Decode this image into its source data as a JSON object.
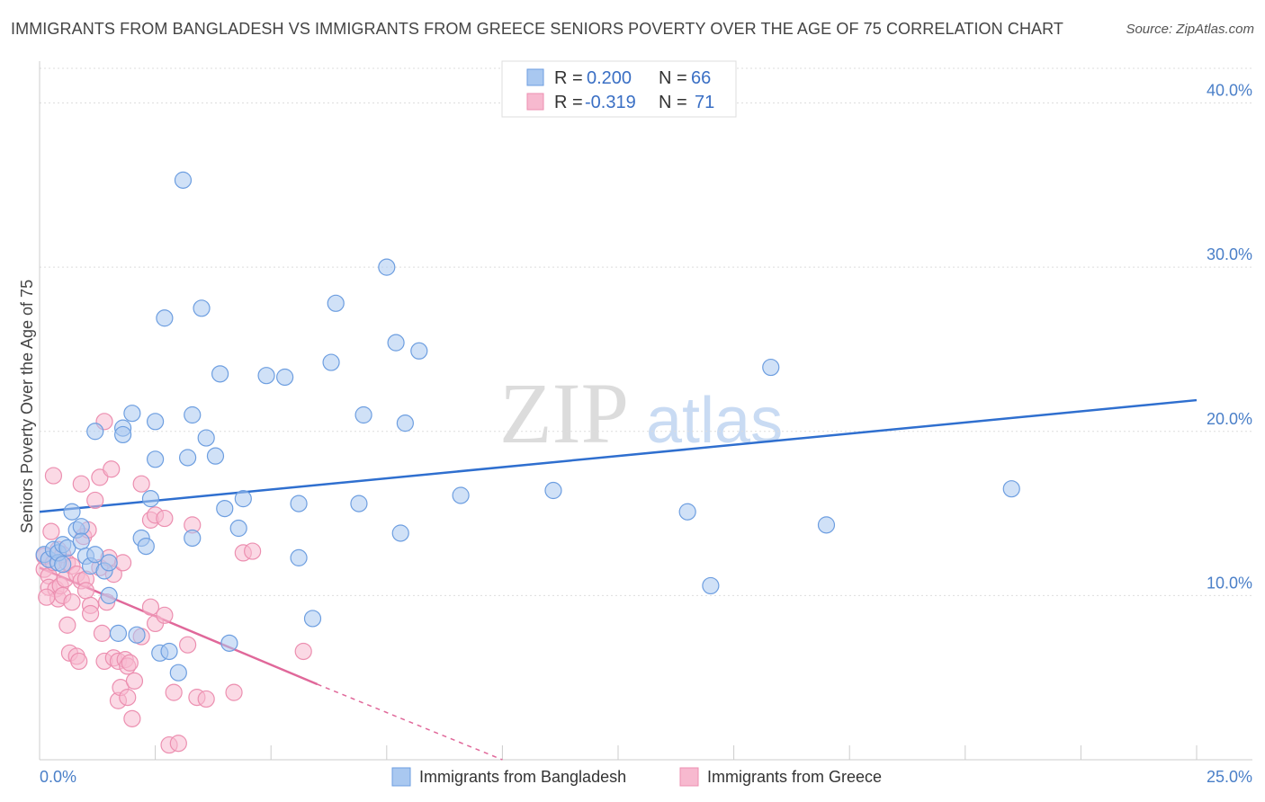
{
  "title": "IMMIGRANTS FROM BANGLADESH VS IMMIGRANTS FROM GREECE SENIORS POVERTY OVER THE AGE OF 75 CORRELATION CHART",
  "source": "Source: ZipAtlas.com",
  "watermark": {
    "zip": "ZIP",
    "atlas": "atlas"
  },
  "colors": {
    "bangladesh_fill": "#a9c8f0",
    "bangladesh_stroke": "#6d9ee0",
    "bangladesh_line": "#2f6fcf",
    "greece_fill": "#f7b9cf",
    "greece_stroke": "#ec8fb0",
    "greece_line": "#e0689a",
    "grid": "#dddddd",
    "axis_text": "#4a7fc8"
  },
  "legend": {
    "r_label": "R =",
    "n_label": "N =",
    "series": [
      {
        "r": "0.200",
        "n": "66"
      },
      {
        "r": "-0.319",
        "n": "71"
      }
    ]
  },
  "chart_data": {
    "type": "scatter",
    "title": "IMMIGRANTS FROM BANGLADESH VS IMMIGRANTS FROM GREECE SENIORS POVERTY OVER THE AGE OF 75 CORRELATION CHART",
    "xlabel": "",
    "ylabel": "Seniors Poverty Over the Age of 75",
    "xlim": [
      0,
      25
    ],
    "ylim": [
      0,
      42
    ],
    "x_tick_labels": [
      "0.0%",
      "25.0%"
    ],
    "y_ticks": [
      10,
      20,
      30,
      40
    ],
    "y_tick_labels": [
      "10.0%",
      "20.0%",
      "30.0%",
      "40.0%"
    ],
    "legend_position": "top-center",
    "grid": true,
    "series": [
      {
        "name": "Immigrants from Bangladesh",
        "r": 0.2,
        "n": 66,
        "trend": {
          "x": [
            0,
            25
          ],
          "y": [
            15.1,
            21.9
          ]
        },
        "points": [
          [
            0.1,
            12.5
          ],
          [
            0.2,
            12.2
          ],
          [
            0.3,
            12.8
          ],
          [
            0.4,
            12.0
          ],
          [
            0.4,
            12.6
          ],
          [
            0.5,
            13.1
          ],
          [
            0.5,
            11.9
          ],
          [
            0.6,
            12.9
          ],
          [
            0.7,
            15.1
          ],
          [
            0.8,
            14.0
          ],
          [
            0.9,
            14.2
          ],
          [
            0.9,
            13.3
          ],
          [
            1.0,
            12.4
          ],
          [
            1.1,
            11.8
          ],
          [
            1.2,
            12.5
          ],
          [
            1.4,
            11.5
          ],
          [
            1.5,
            12.0
          ],
          [
            1.5,
            10.0
          ],
          [
            1.7,
            7.7
          ],
          [
            1.2,
            20.0
          ],
          [
            1.8,
            20.2
          ],
          [
            1.8,
            19.8
          ],
          [
            2.0,
            21.1
          ],
          [
            2.1,
            7.6
          ],
          [
            2.2,
            13.5
          ],
          [
            2.3,
            13.0
          ],
          [
            2.4,
            15.9
          ],
          [
            2.5,
            20.6
          ],
          [
            2.5,
            18.3
          ],
          [
            2.6,
            6.5
          ],
          [
            2.7,
            26.9
          ],
          [
            2.8,
            6.6
          ],
          [
            3.0,
            5.3
          ],
          [
            3.1,
            35.3
          ],
          [
            3.2,
            18.4
          ],
          [
            3.3,
            13.5
          ],
          [
            3.3,
            21.0
          ],
          [
            3.5,
            27.5
          ],
          [
            3.6,
            19.6
          ],
          [
            3.8,
            18.5
          ],
          [
            3.9,
            23.5
          ],
          [
            4.0,
            15.3
          ],
          [
            4.1,
            7.1
          ],
          [
            4.3,
            14.1
          ],
          [
            4.4,
            15.9
          ],
          [
            4.9,
            23.4
          ],
          [
            5.3,
            23.3
          ],
          [
            5.6,
            15.6
          ],
          [
            5.6,
            12.3
          ],
          [
            5.9,
            8.6
          ],
          [
            6.3,
            24.2
          ],
          [
            6.4,
            27.8
          ],
          [
            6.9,
            15.6
          ],
          [
            7.0,
            21.0
          ],
          [
            7.5,
            30.0
          ],
          [
            7.7,
            25.4
          ],
          [
            7.8,
            13.8
          ],
          [
            7.9,
            20.5
          ],
          [
            8.2,
            24.9
          ],
          [
            9.1,
            16.1
          ],
          [
            11.1,
            16.4
          ],
          [
            14.0,
            15.1
          ],
          [
            14.5,
            10.6
          ],
          [
            15.8,
            23.9
          ],
          [
            17.0,
            14.3
          ],
          [
            21.0,
            16.5
          ]
        ]
      },
      {
        "name": "Immigrants from Greece",
        "r": -0.319,
        "n": 71,
        "trend": {
          "x": [
            0,
            6.0
          ],
          "y": [
            11.7,
            4.6
          ]
        },
        "trend_dashed": {
          "x": [
            6.0,
            10.0
          ],
          "y": [
            4.6,
            0.0
          ]
        },
        "points": [
          [
            0.1,
            11.6
          ],
          [
            0.1,
            12.4
          ],
          [
            0.2,
            11.2
          ],
          [
            0.2,
            10.5
          ],
          [
            0.3,
            12.0
          ],
          [
            0.3,
            17.3
          ],
          [
            0.35,
            10.4
          ],
          [
            0.4,
            12.8
          ],
          [
            0.4,
            9.8
          ],
          [
            0.45,
            10.6
          ],
          [
            0.5,
            12.5
          ],
          [
            0.5,
            10.0
          ],
          [
            0.55,
            11.0
          ],
          [
            0.6,
            12.0
          ],
          [
            0.6,
            8.2
          ],
          [
            0.65,
            6.5
          ],
          [
            0.7,
            11.8
          ],
          [
            0.7,
            9.6
          ],
          [
            0.8,
            11.3
          ],
          [
            0.8,
            6.3
          ],
          [
            0.85,
            6.0
          ],
          [
            0.9,
            16.8
          ],
          [
            0.9,
            10.9
          ],
          [
            0.95,
            13.6
          ],
          [
            1.0,
            11.0
          ],
          [
            1.0,
            10.3
          ],
          [
            1.05,
            14.0
          ],
          [
            1.1,
            9.4
          ],
          [
            1.1,
            8.9
          ],
          [
            1.2,
            15.8
          ],
          [
            1.3,
            17.2
          ],
          [
            1.3,
            11.7
          ],
          [
            1.35,
            7.7
          ],
          [
            1.4,
            6.0
          ],
          [
            1.4,
            20.6
          ],
          [
            1.45,
            9.6
          ],
          [
            1.5,
            12.3
          ],
          [
            1.55,
            17.7
          ],
          [
            1.6,
            11.3
          ],
          [
            1.6,
            6.2
          ],
          [
            1.7,
            6.0
          ],
          [
            1.7,
            3.6
          ],
          [
            1.75,
            4.4
          ],
          [
            1.8,
            12.0
          ],
          [
            1.85,
            6.1
          ],
          [
            1.9,
            3.8
          ],
          [
            1.9,
            5.7
          ],
          [
            1.95,
            5.9
          ],
          [
            2.0,
            2.5
          ],
          [
            2.05,
            4.8
          ],
          [
            2.2,
            16.8
          ],
          [
            2.2,
            7.5
          ],
          [
            2.4,
            9.3
          ],
          [
            2.4,
            14.6
          ],
          [
            2.5,
            14.9
          ],
          [
            2.5,
            8.3
          ],
          [
            2.7,
            14.7
          ],
          [
            2.7,
            8.8
          ],
          [
            2.8,
            0.9
          ],
          [
            2.9,
            4.1
          ],
          [
            3.0,
            1.0
          ],
          [
            3.2,
            7.0
          ],
          [
            3.3,
            14.3
          ],
          [
            3.4,
            3.8
          ],
          [
            3.6,
            3.7
          ],
          [
            4.2,
            4.1
          ],
          [
            4.4,
            12.6
          ],
          [
            4.6,
            12.7
          ],
          [
            5.7,
            6.6
          ],
          [
            0.25,
            13.9
          ],
          [
            0.15,
            9.9
          ]
        ]
      }
    ]
  }
}
